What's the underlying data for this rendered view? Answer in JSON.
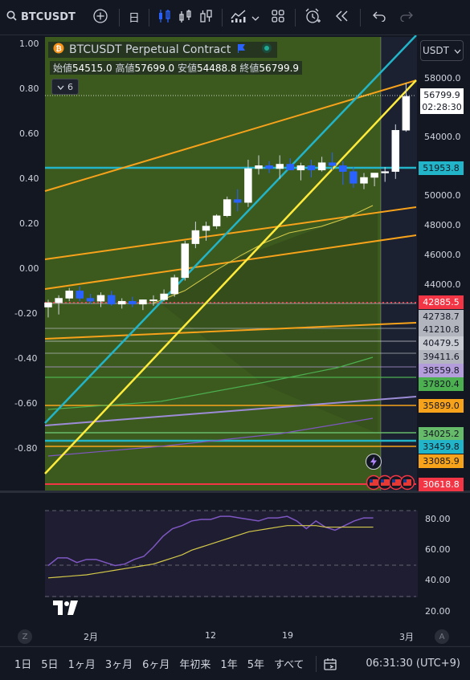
{
  "toolbar": {
    "symbol": "BTCUSDT",
    "interval": "日"
  },
  "legend": {
    "title": "BTCUSDT Perpetual Contract",
    "open_label": "始値",
    "open": "54515.0",
    "high_label": "高値",
    "high": "57699.0",
    "low_label": "安値",
    "low": "54488.8",
    "close_label": "終値",
    "close": "56799.9",
    "indicator_count": "6"
  },
  "currency": "USDT",
  "left_axis": [
    "1.00",
    "0.80",
    "0.60",
    "0.40",
    "0.20",
    "0.00",
    "-0.20",
    "-0.40",
    "-0.60",
    "-0.80"
  ],
  "price_axis": [
    "58000.0",
    "54000.0",
    "50000.0",
    "48000.0",
    "46000.0",
    "44000.0"
  ],
  "last_price": {
    "price": "56799.9",
    "countdown": "02:28:30"
  },
  "price_labels": [
    {
      "text": "51953.8",
      "color": "#22b5c9",
      "fg": "#131722"
    },
    {
      "text": "42885.5",
      "color": "#f23645",
      "fg": "#ffffff"
    },
    {
      "text": "42738.7",
      "color": "#b2b5be",
      "fg": "#131722"
    },
    {
      "text": "41210.8",
      "color": "#b2b5be",
      "fg": "#131722"
    },
    {
      "text": "40479.5",
      "color": "#c9cbd3",
      "fg": "#131722"
    },
    {
      "text": "39411.6",
      "color": "#b2b5be",
      "fg": "#131722"
    },
    {
      "text": "38559.8",
      "color": "#b39ddb",
      "fg": "#131722"
    },
    {
      "text": "37820.4",
      "color": "#4caf50",
      "fg": "#131722"
    },
    {
      "text": "35899.0",
      "color": "#f7a21b",
      "fg": "#131722"
    },
    {
      "text": "34025.2",
      "color": "#66bb6a",
      "fg": "#131722"
    },
    {
      "text": "33459.8",
      "color": "#22b5c9",
      "fg": "#131722"
    },
    {
      "text": "33085.9",
      "color": "#f7a21b",
      "fg": "#131722"
    },
    {
      "text": "30618.8",
      "color": "#f23645",
      "fg": "#ffffff"
    }
  ],
  "rsi_axis": [
    "80.00",
    "60.00",
    "40.00",
    "20.00"
  ],
  "x_axis": [
    "2月",
    "12",
    "19",
    "3月"
  ],
  "bottom": {
    "ranges": [
      "1日",
      "5日",
      "1ヶ月",
      "3ヶ月",
      "6ヶ月",
      "年初来",
      "1年",
      "5年",
      "すべて"
    ],
    "time": "06:31:30 (UTC+9)",
    "z_label": "Z",
    "a_label": "A"
  },
  "colors": {
    "bg": "#131722",
    "fib_fill": "#3d5a1e",
    "orange": "#f7a21b",
    "cyan": "#22b5c9",
    "yellow": "#ffeb3b",
    "red": "#f23645"
  },
  "chart_data": {
    "type": "candlestick",
    "candles": [
      [
        42500,
        43000,
        41800,
        42800
      ],
      [
        42800,
        43300,
        42000,
        43100
      ],
      [
        43100,
        43800,
        42900,
        43600
      ],
      [
        43600,
        43900,
        42900,
        43100
      ],
      [
        43100,
        43400,
        42700,
        42900
      ],
      [
        42900,
        43500,
        42500,
        43300
      ],
      [
        43300,
        43600,
        42600,
        42700
      ],
      [
        42700,
        43100,
        42400,
        42900
      ],
      [
        42900,
        43200,
        42500,
        42700
      ],
      [
        42700,
        43000,
        42300,
        43000
      ],
      [
        43000,
        43300,
        42600,
        43000
      ],
      [
        43000,
        43700,
        42900,
        43400
      ],
      [
        43400,
        44700,
        43200,
        44500
      ],
      [
        44500,
        47000,
        44300,
        46800
      ],
      [
        46800,
        48300,
        46500,
        47700
      ],
      [
        47700,
        48300,
        47000,
        48000
      ],
      [
        48000,
        48800,
        47800,
        48700
      ],
      [
        48700,
        50000,
        48600,
        49800
      ],
      [
        49800,
        50500,
        49000,
        49600
      ],
      [
        49600,
        52500,
        49300,
        51900
      ],
      [
        51900,
        52800,
        51500,
        52100
      ],
      [
        52100,
        52400,
        51600,
        51900
      ],
      [
        51900,
        52800,
        51200,
        52200
      ],
      [
        52200,
        52600,
        51800,
        51800
      ],
      [
        51800,
        52300,
        51100,
        52100
      ],
      [
        52100,
        52500,
        51300,
        51800
      ],
      [
        51800,
        52700,
        51700,
        52300
      ],
      [
        52300,
        53000,
        51800,
        52100
      ],
      [
        52100,
        52400,
        50800,
        51700
      ],
      [
        51700,
        52000,
        50600,
        50900
      ],
      [
        50900,
        51600,
        50500,
        51300
      ],
      [
        51300,
        51500,
        50700,
        51600
      ],
      [
        51600,
        52000,
        51000,
        51700
      ],
      [
        51700,
        54900,
        51200,
        54500
      ],
      [
        54500,
        57700,
        54400,
        56800
      ]
    ],
    "rsi_series": [
      50,
      55,
      55,
      52,
      54,
      54,
      52,
      50,
      51,
      54,
      56,
      62,
      69,
      74,
      76,
      79,
      80,
      80,
      82,
      82,
      81,
      80,
      79,
      81,
      81,
      82,
      79,
      74,
      79,
      75,
      73,
      76,
      79,
      81,
      81
    ],
    "ma_series": [
      42,
      42.5,
      43,
      43.5,
      44,
      45,
      46,
      47,
      48,
      49,
      50,
      51,
      53,
      55,
      57,
      60,
      62,
      64,
      66,
      68,
      70,
      72,
      73,
      74,
      75,
      76,
      76,
      76,
      76,
      75,
      75,
      75,
      75,
      75,
      75
    ]
  }
}
